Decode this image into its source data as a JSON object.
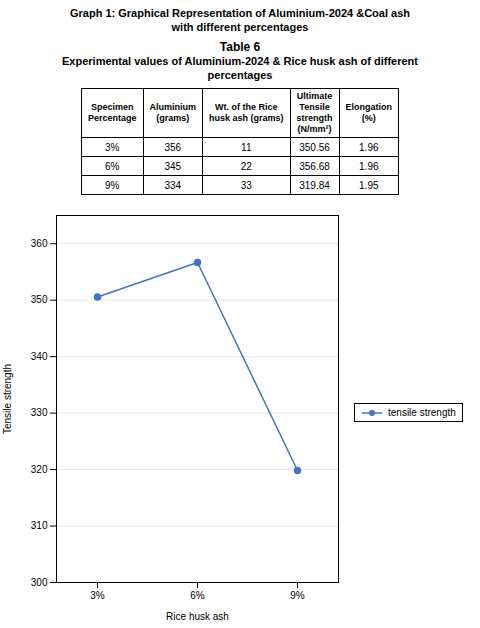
{
  "chart_data": {
    "type": "line",
    "title": "Graph 1:  Graphical Representation of Aluminium-2024 &Coal ash",
    "subtitle": "with different percentages",
    "table": {
      "title": [
        "Table 6",
        "Experimental values of Aluminium-2024 & Rice husk ash of different",
        "percentages"
      ],
      "columns": [
        "Specimen\nPercentage",
        "Aluminium\n(grams)",
        "Wt. of the Rice\nhusk ash (grams)",
        "Ultimate\nTensile\nstrength\n(N/mm²)",
        "Elongation\n(%)"
      ],
      "rows": [
        [
          "3%",
          "356",
          "11",
          "350.56",
          "1.96"
        ],
        [
          "6%",
          "345",
          "22",
          "356.68",
          "1.96"
        ],
        [
          "9%",
          "334",
          "33",
          "319.84",
          "1.95"
        ]
      ]
    },
    "categories": [
      "3%",
      "6%",
      "9%"
    ],
    "series": [
      {
        "name": "tensile strength",
        "color": "#4472C4",
        "marker": "circle",
        "values": [
          350.56,
          356.68,
          319.84
        ]
      }
    ],
    "x_label": "Rice husk ash",
    "y_label": "Tensile strength",
    "ylim": [
      300,
      365
    ],
    "yticks": [
      300,
      310,
      320,
      330,
      340,
      350,
      360
    ],
    "grid": true,
    "legend": "right"
  }
}
